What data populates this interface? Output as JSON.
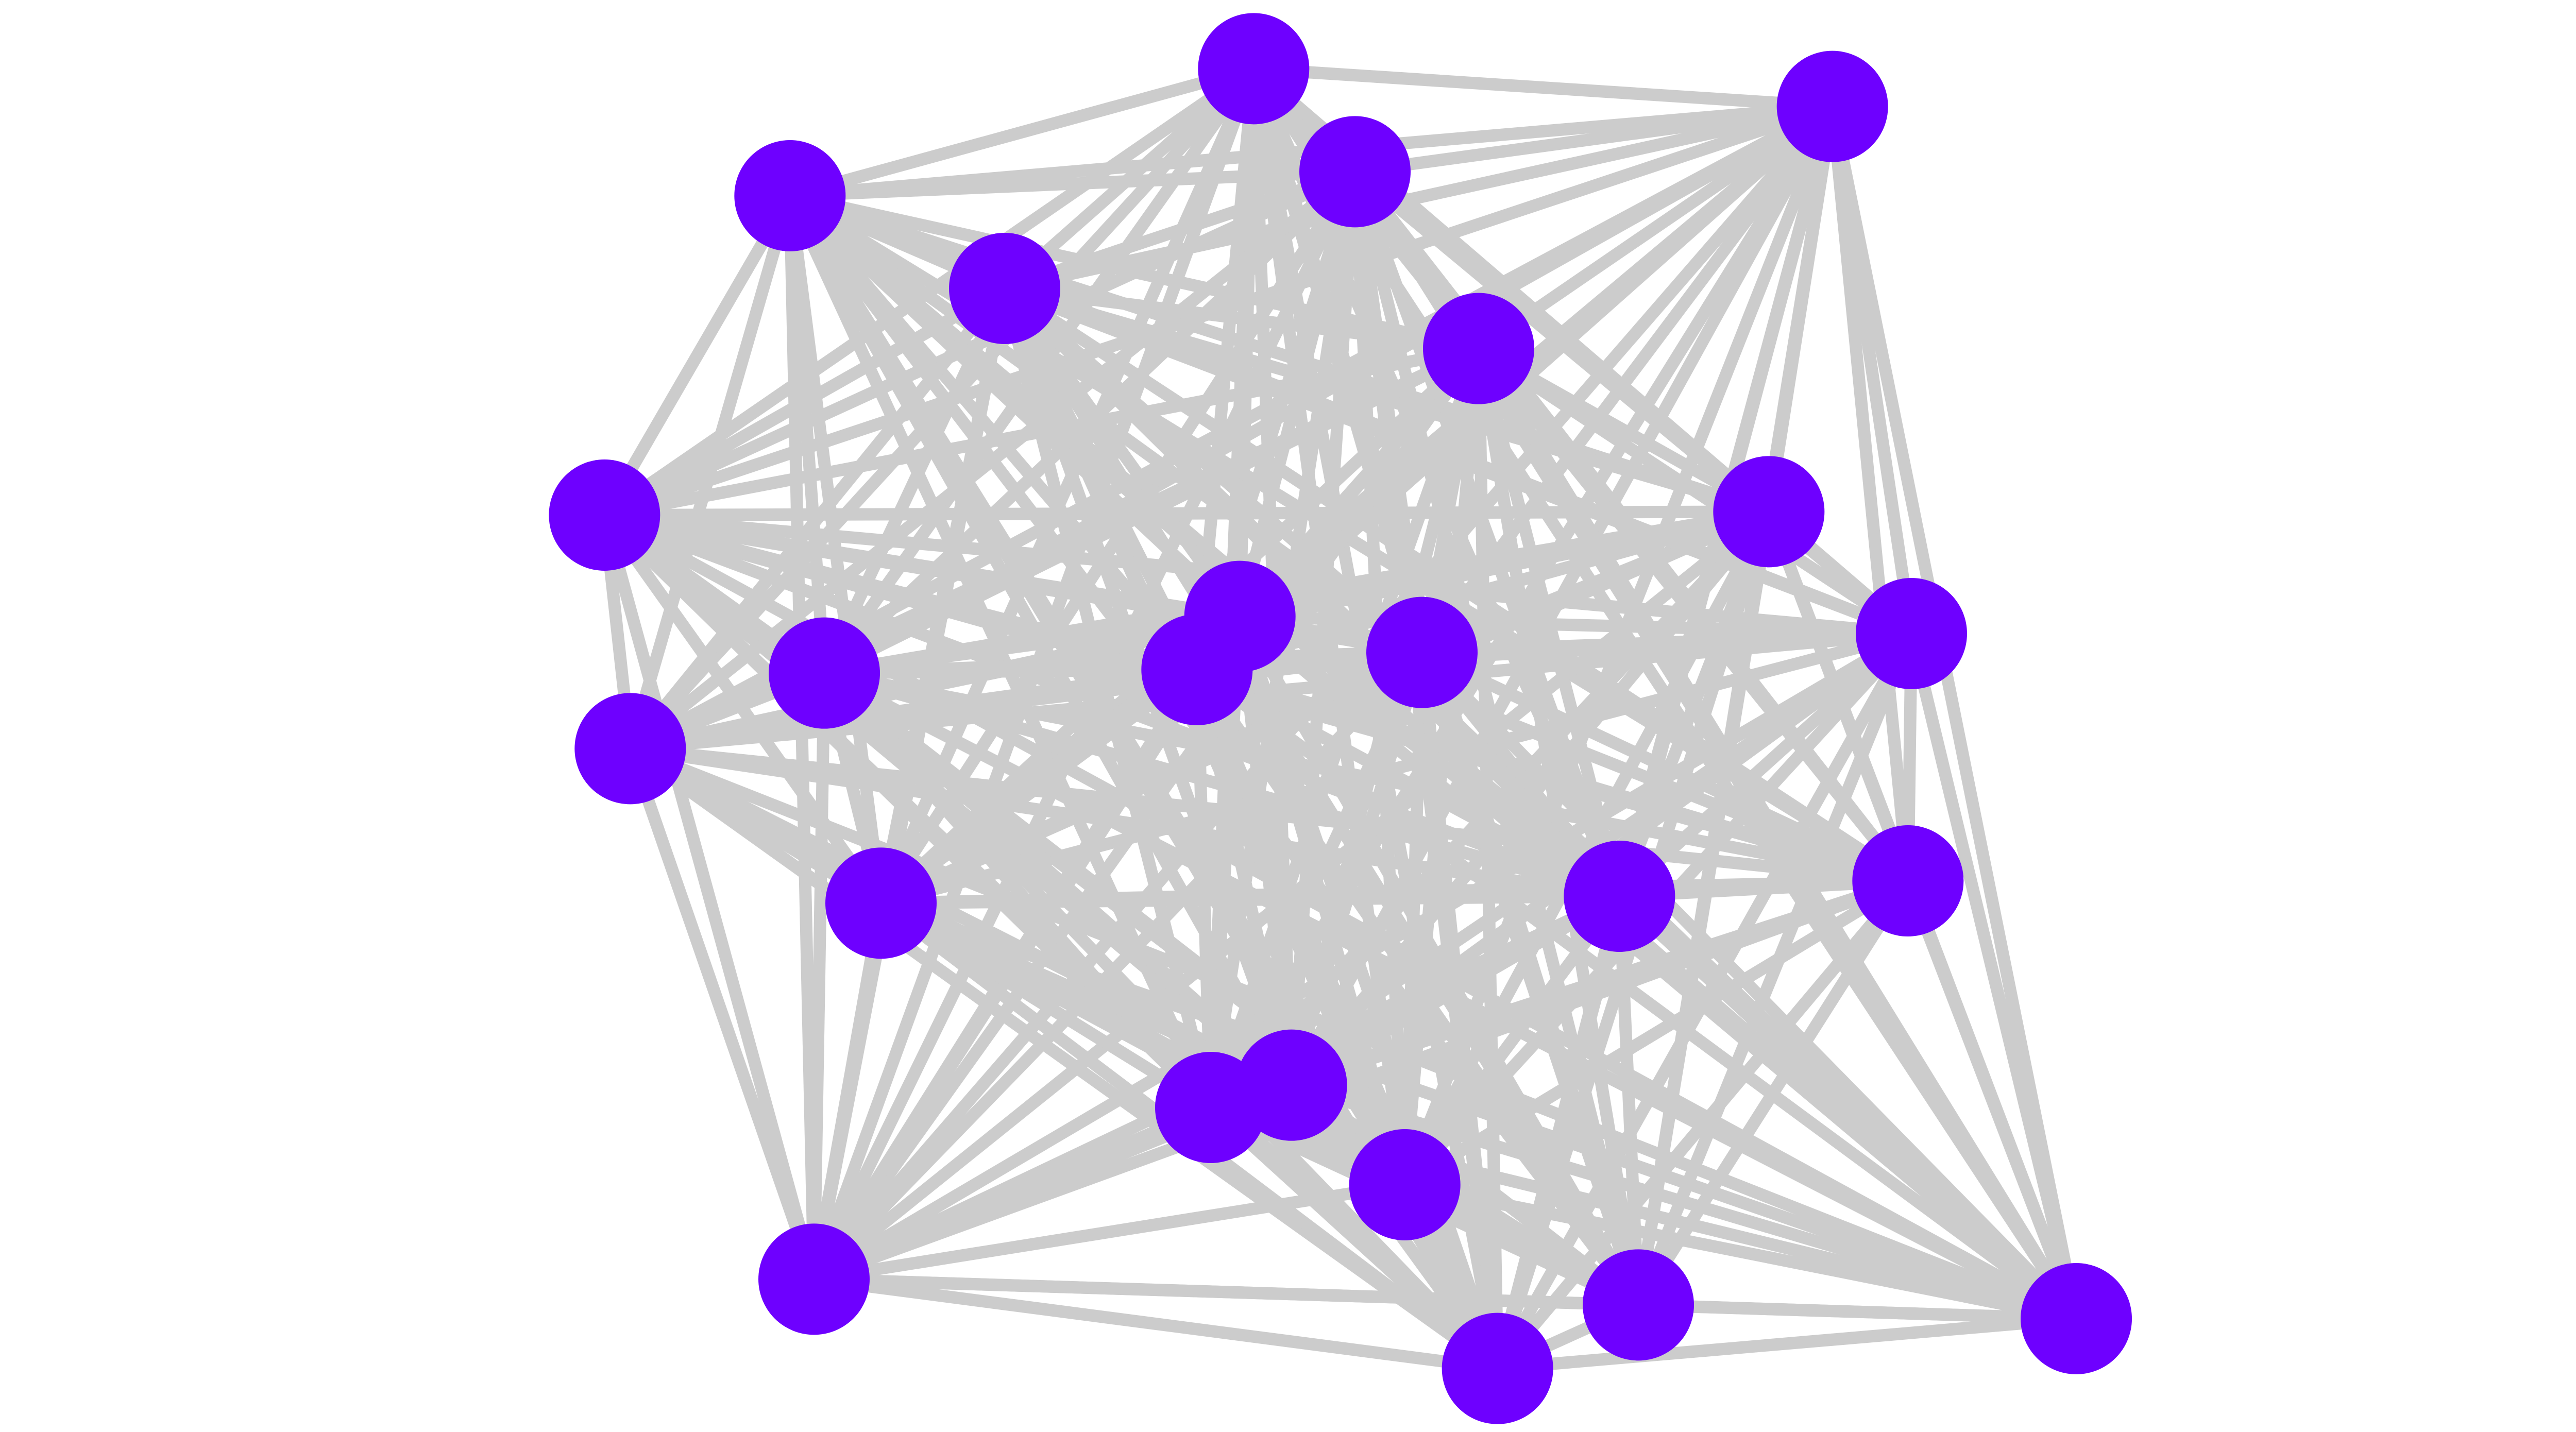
{
  "graph": {
    "type": "network",
    "layout": "complete-graph",
    "node_count": 24,
    "edges": "all-pairs",
    "colors": {
      "node": "#6e00ff",
      "edge": "#cccccc",
      "background": "#ffffff"
    }
  }
}
